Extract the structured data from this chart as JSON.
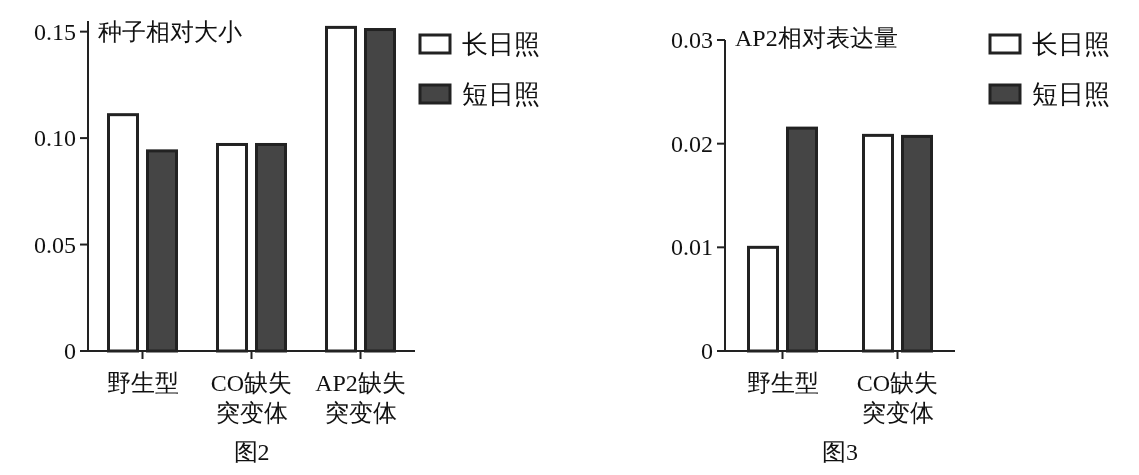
{
  "chart_data": [
    {
      "type": "bar",
      "ylabel": "种子相对大小",
      "categories": [
        "野生型",
        "CO缺失突变体",
        "AP2缺失突变体"
      ],
      "series": [
        {
          "name": "长日照",
          "color": "#ffffff",
          "values": [
            0.111,
            0.097,
            0.152
          ]
        },
        {
          "name": "短日照",
          "color": "#454545",
          "values": [
            0.094,
            0.097,
            0.151
          ]
        }
      ],
      "ylim": [
        0,
        0.155
      ],
      "yticks": [
        {
          "value": 0,
          "label": "0"
        },
        {
          "value": 0.05,
          "label": "0.05"
        },
        {
          "value": 0.1,
          "label": "0.10"
        },
        {
          "value": 0.15,
          "label": "0.15"
        }
      ],
      "legend": "right",
      "grid": false,
      "annotations": [
        "图2"
      ]
    },
    {
      "type": "bar",
      "ylabel": "AP2相对表达量",
      "categories": [
        "野生型",
        "CO缺失突变体"
      ],
      "series": [
        {
          "name": "长日照",
          "color": "#ffffff",
          "values": [
            0.01,
            0.0208
          ]
        },
        {
          "name": "短日照",
          "color": "#454545",
          "values": [
            0.0215,
            0.0207
          ]
        }
      ],
      "ylim": [
        0,
        0.03
      ],
      "yticks": [
        {
          "value": 0,
          "label": "0"
        },
        {
          "value": 0.01,
          "label": "0.01"
        },
        {
          "value": 0.02,
          "label": "0.02"
        },
        {
          "value": 0.03,
          "label": "0.03"
        }
      ],
      "legend": "right",
      "grid": false,
      "annotations": [
        "图3"
      ]
    }
  ]
}
